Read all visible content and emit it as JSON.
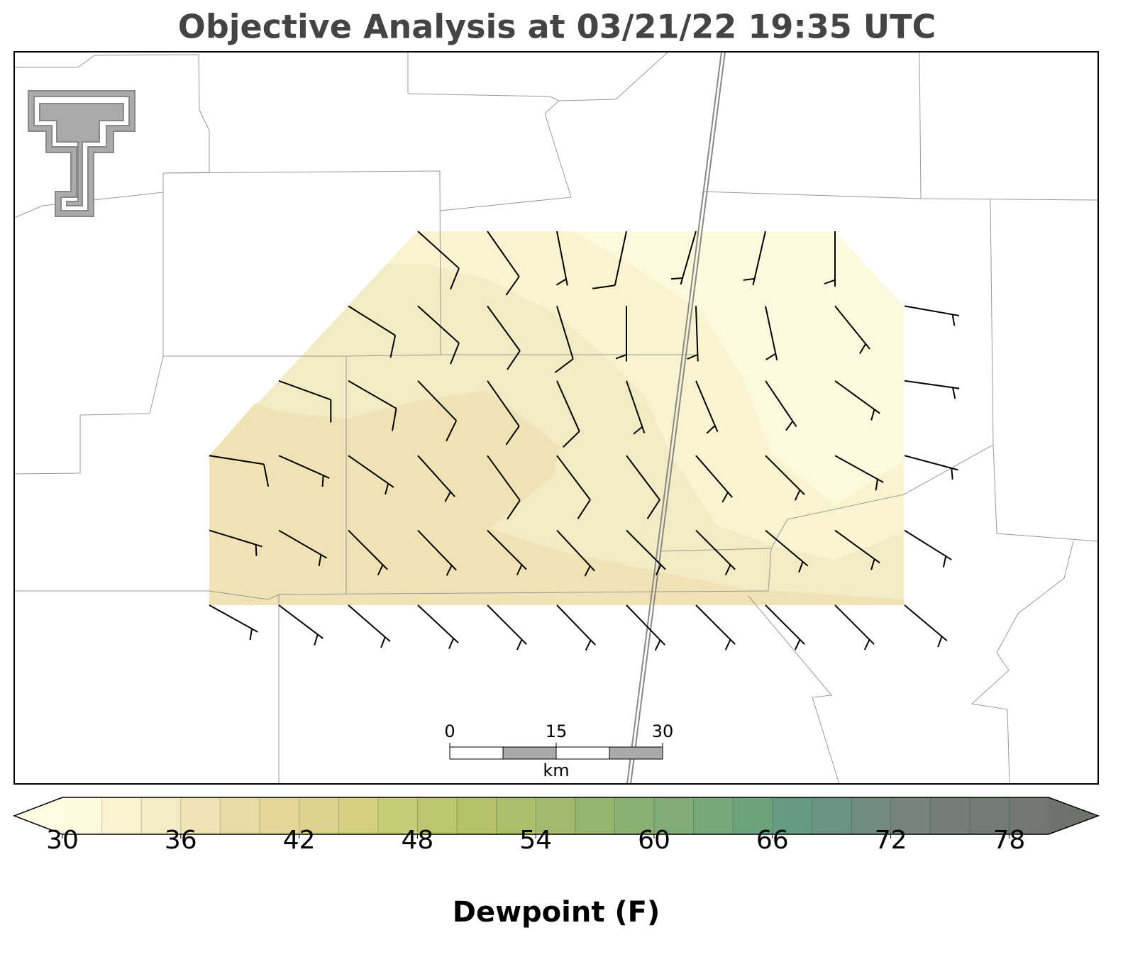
{
  "title": "Objective Analysis at 03/21/22 19:35 UTC",
  "colorbar": {
    "label": "Dewpoint (F)",
    "lim": [
      30,
      80
    ],
    "ticks": [
      30,
      36,
      42,
      48,
      54,
      60,
      66,
      72,
      78
    ],
    "colors": [
      "#fdf9dc",
      "#f9f3d0",
      "#f3ebc4",
      "#efe3b5",
      "#e9dba6",
      "#e3d698",
      "#dbd28c",
      "#d2cf80",
      "#c8cb76",
      "#bfc76e",
      "#b4c169",
      "#a9bf6a",
      "#9fba6c",
      "#95b56e",
      "#89b172",
      "#7fad75",
      "#75a979",
      "#6ba47c",
      "#659c80",
      "#6a9381",
      "#718b7c",
      "#758579",
      "#748076",
      "#737c72",
      "#737870"
    ],
    "under_color": "#fefbe2",
    "over_color": "#6e746b"
  },
  "scale_bar": {
    "ticks": [
      0,
      15,
      30
    ],
    "unit": "km"
  },
  "wind_barbs": {
    "direction": [
      [
        null,
        null,
        null,
        132,
        145,
        169,
        192,
        196,
        193,
        180,
        null
      ],
      [
        null,
        null,
        122,
        132,
        144,
        163,
        180,
        178,
        168,
        141,
        100
      ],
      [
        null,
        110,
        120,
        136,
        145,
        156,
        161,
        157,
        146,
        126,
        98
      ],
      [
        99,
        114,
        125,
        138,
        144,
        143,
        143,
        139,
        135,
        119,
        105
      ],
      [
        107,
        120,
        135,
        136,
        135,
        137,
        135,
        135,
        130,
        126,
        122
      ],
      [
        119,
        127,
        131,
        133,
        135,
        136,
        136,
        135,
        135,
        135,
        130
      ]
    ],
    "speed": [
      [
        null,
        null,
        null,
        10,
        10,
        5,
        10,
        5,
        5,
        5,
        null
      ],
      [
        null,
        null,
        10,
        10,
        10,
        10,
        5,
        5,
        5,
        5,
        5
      ],
      [
        null,
        10,
        10,
        10,
        10,
        10,
        5,
        5,
        5,
        5,
        5
      ],
      [
        10,
        5,
        5,
        5,
        10,
        10,
        10,
        5,
        5,
        5,
        5
      ],
      [
        5,
        5,
        5,
        5,
        5,
        5,
        5,
        5,
        5,
        5,
        5
      ],
      [
        5,
        5,
        5,
        5,
        5,
        5,
        5,
        5,
        5,
        5,
        5
      ]
    ]
  }
}
